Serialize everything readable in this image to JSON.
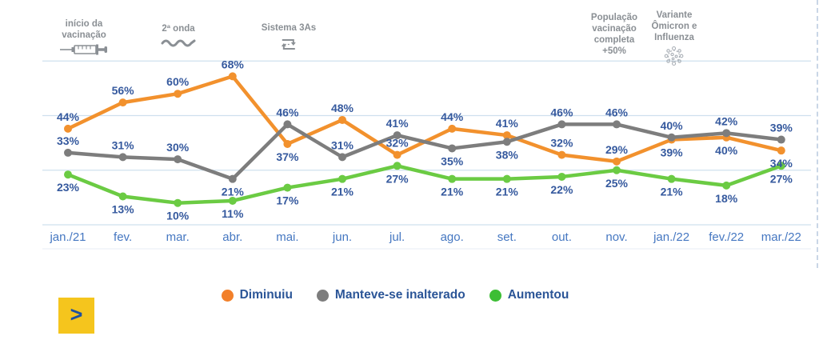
{
  "annotations": [
    {
      "id": "inicio-vacinacao",
      "lines": [
        "início da",
        "vacinação"
      ],
      "icon": "syringe-icon"
    },
    {
      "id": "segunda-onda",
      "lines": [
        "2ª onda"
      ],
      "icon": "wave-icon"
    },
    {
      "id": "sistema-3as",
      "lines": [
        "Sistema 3As"
      ],
      "icon": "cycle-arrows-icon"
    },
    {
      "id": "populacao-vacinacao",
      "lines": [
        "População",
        "vacinação",
        "completa",
        "+50%"
      ],
      "icon": null
    },
    {
      "id": "variante-omicron",
      "lines": [
        "Variante",
        "Ômicron e",
        "Influenza"
      ],
      "icon": "virus-icon"
    }
  ],
  "chart_data": {
    "type": "line",
    "categories": [
      "jan./21",
      "fev.",
      "mar.",
      "abr.",
      "mai.",
      "jun.",
      "jul.",
      "ago.",
      "set.",
      "out.",
      "nov.",
      "jan./22",
      "fev./22",
      "mar./22"
    ],
    "series": [
      {
        "name": "Diminuiu",
        "color": "#f2912d",
        "values": [
          44,
          56,
          60,
          68,
          37,
          48,
          32,
          44,
          41,
          32,
          29,
          39,
          40,
          34
        ],
        "label_positions": [
          "above",
          "above",
          "above",
          "above",
          "below",
          "above",
          "above",
          "above",
          "above",
          "above",
          "above",
          "below",
          "below",
          "below"
        ]
      },
      {
        "name": "Manteve-se inalterado",
        "color": "#7d7d7d",
        "values": [
          33,
          31,
          30,
          21,
          46,
          31,
          41,
          35,
          38,
          46,
          46,
          40,
          42,
          39
        ],
        "label_positions": [
          "above",
          "above",
          "above",
          "below",
          "above",
          "above",
          "above",
          "below",
          "below",
          "above",
          "above",
          "above",
          "above",
          "above"
        ]
      },
      {
        "name": "Aumentou",
        "color": "#6bcb43",
        "values": [
          23,
          13,
          10,
          11,
          17,
          21,
          27,
          21,
          21,
          22,
          25,
          21,
          18,
          27
        ],
        "label_positions": [
          "below",
          "below",
          "below",
          "below",
          "below",
          "below",
          "below",
          "below",
          "below",
          "below",
          "below",
          "below",
          "below",
          "below"
        ]
      }
    ],
    "unit": "%",
    "ylim": [
      0,
      80
    ],
    "gridline_values": [
      0,
      25,
      50,
      75
    ],
    "grid": true,
    "legend_position": "bottom",
    "data_label_color": "#35599e",
    "axis_label_color": "#4577c1",
    "gridline_color": "#cfe0ee"
  },
  "legend": {
    "items": [
      {
        "label": "Diminuiu",
        "color": "#f2802a"
      },
      {
        "label": "Manteve-se inalterado",
        "color": "#7d7d7d"
      },
      {
        "label": "Aumentou",
        "color": "#3dbe35"
      }
    ]
  },
  "nav": {
    "next_label": ">"
  }
}
